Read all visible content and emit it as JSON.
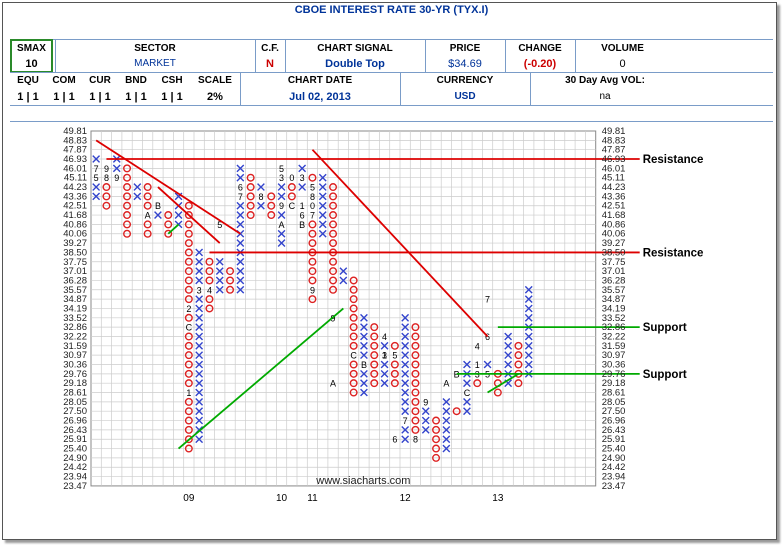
{
  "header": {
    "title": "CBOE INTEREST RATE 30-YR (TYX.I)",
    "labels": {
      "smax": "SMAX",
      "sector": "SECTOR",
      "cf": "C.F.",
      "signal": "CHART SIGNAL",
      "price": "PRICE",
      "change": "CHANGE",
      "volume": "VOLUME",
      "equ": "EQU",
      "com": "COM",
      "cur": "CUR",
      "bnd": "BND",
      "csh": "CSH",
      "scale": "SCALE",
      "date": "CHART DATE",
      "currency": "CURRENCY",
      "avgvol": "30 Day Avg VOL:"
    },
    "values": {
      "smax": "10",
      "sector": "MARKET",
      "cf": "N",
      "signal": "Double Top",
      "price": "$34.69",
      "change": "(-0.20)",
      "volume": "0",
      "equ": "1 | 1",
      "com": "1 | 1",
      "cur": "1 | 1",
      "bnd": "1 | 1",
      "csh": "1 | 1",
      "scale": "2%",
      "date": "Jul 02, 2013",
      "currency": "USD",
      "avgvol": "na"
    },
    "colors": {
      "title": "#003399",
      "change": "#cc0000",
      "smax_border": "#2a8a2a",
      "header_lines": "#7a9cc8"
    }
  },
  "chart_data": {
    "type": "point-and-figure",
    "watermark": "www.siacharts.com",
    "y_ticks": [
      49.81,
      48.83,
      47.87,
      46.93,
      46.01,
      45.11,
      44.23,
      43.36,
      42.51,
      41.68,
      40.86,
      40.06,
      39.27,
      38.5,
      37.75,
      37.01,
      36.28,
      35.57,
      34.87,
      34.19,
      33.52,
      32.86,
      32.22,
      31.59,
      30.97,
      30.36,
      29.76,
      29.18,
      28.61,
      28.05,
      27.5,
      26.96,
      26.43,
      25.91,
      25.4,
      24.9,
      24.42,
      23.94,
      23.47
    ],
    "x_labels": [
      {
        "label": "09",
        "col": 9
      },
      {
        "label": "10",
        "col": 18
      },
      {
        "label": "11",
        "col": 21
      },
      {
        "label": "12",
        "col": 30
      },
      {
        "label": "13",
        "col": 39
      }
    ],
    "columns": [
      {
        "type": "X",
        "from": 3,
        "to": 7
      },
      {
        "type": "O",
        "from": 4,
        "to": 8
      },
      {
        "type": "X",
        "from": 3,
        "to": 4
      },
      {
        "type": "O",
        "from": 4,
        "to": 11
      },
      {
        "type": "X",
        "from": 6,
        "to": 7
      },
      {
        "type": "O",
        "from": 6,
        "to": 11
      },
      {
        "type": "X",
        "from": 8,
        "to": 9
      },
      {
        "type": "O",
        "from": 9,
        "to": 11
      },
      {
        "type": "X",
        "from": 7,
        "to": 10
      },
      {
        "type": "O",
        "from": 8,
        "to": 34
      },
      {
        "type": "X",
        "from": 13,
        "to": 33
      },
      {
        "type": "O",
        "from": 14,
        "to": 19
      },
      {
        "type": "X",
        "from": 14,
        "to": 17
      },
      {
        "type": "O",
        "from": 15,
        "to": 17
      },
      {
        "type": "X",
        "from": 4,
        "to": 17
      },
      {
        "type": "O",
        "from": 5,
        "to": 9
      },
      {
        "type": "X",
        "from": 6,
        "to": 8
      },
      {
        "type": "O",
        "from": 7,
        "to": 9
      },
      {
        "type": "X",
        "from": 4,
        "to": 12
      },
      {
        "type": "O",
        "from": 5,
        "to": 7
      },
      {
        "type": "X",
        "from": 4,
        "to": 6
      },
      {
        "type": "O",
        "from": 5,
        "to": 18
      },
      {
        "type": "X",
        "from": 5,
        "to": 11
      },
      {
        "type": "O",
        "from": 6,
        "to": 17
      },
      {
        "type": "X",
        "from": 15,
        "to": 16
      },
      {
        "type": "O",
        "from": 16,
        "to": 28
      },
      {
        "type": "X",
        "from": 20,
        "to": 28
      },
      {
        "type": "O",
        "from": 21,
        "to": 27
      },
      {
        "type": "X",
        "from": 22,
        "to": 27
      },
      {
        "type": "O",
        "from": 23,
        "to": 27
      },
      {
        "type": "X",
        "from": 20,
        "to": 33
      },
      {
        "type": "O",
        "from": 21,
        "to": 33
      },
      {
        "type": "X",
        "from": 30,
        "to": 32
      },
      {
        "type": "O",
        "from": 31,
        "to": 35
      },
      {
        "type": "X",
        "from": 29,
        "to": 34
      },
      {
        "type": "O",
        "from": 30,
        "to": 30
      },
      {
        "type": "X",
        "from": 25,
        "to": 30
      },
      {
        "type": "O",
        "from": 26,
        "to": 27
      },
      {
        "type": "X",
        "from": 25,
        "to": 26
      },
      {
        "type": "O",
        "from": 26,
        "to": 28
      },
      {
        "type": "X",
        "from": 22,
        "to": 27
      },
      {
        "type": "O",
        "from": 23,
        "to": 27
      },
      {
        "type": "X",
        "from": 17,
        "to": 26
      }
    ],
    "month_markers": [
      {
        "col": 0,
        "row": 5,
        "t": "5"
      },
      {
        "col": 0,
        "row": 4,
        "t": "7"
      },
      {
        "col": 1,
        "row": 5,
        "t": "8"
      },
      {
        "col": 1,
        "row": 4,
        "t": "9"
      },
      {
        "col": 2,
        "row": 5,
        "t": "9"
      },
      {
        "col": 5,
        "row": 9,
        "t": "A"
      },
      {
        "col": 6,
        "row": 8,
        "t": "B"
      },
      {
        "col": 9,
        "row": 19,
        "t": "2"
      },
      {
        "col": 9,
        "row": 21,
        "t": "C"
      },
      {
        "col": 9,
        "row": 28,
        "t": "1"
      },
      {
        "col": 10,
        "row": 17,
        "t": "3"
      },
      {
        "col": 11,
        "row": 17,
        "t": "4"
      },
      {
        "col": 12,
        "row": 10,
        "t": "5"
      },
      {
        "col": 14,
        "row": 6,
        "t": "6"
      },
      {
        "col": 14,
        "row": 7,
        "t": "7"
      },
      {
        "col": 16,
        "row": 7,
        "t": "8"
      },
      {
        "col": 18,
        "row": 8,
        "t": "9"
      },
      {
        "col": 18,
        "row": 10,
        "t": "A"
      },
      {
        "col": 19,
        "row": 8,
        "t": "C"
      },
      {
        "col": 18,
        "row": 4,
        "t": "5"
      },
      {
        "col": 18,
        "row": 5,
        "t": "3"
      },
      {
        "col": 19,
        "row": 5,
        "t": "0"
      },
      {
        "col": 20,
        "row": 5,
        "t": "3"
      },
      {
        "col": 20,
        "row": 8,
        "t": "1"
      },
      {
        "col": 20,
        "row": 9,
        "t": "6"
      },
      {
        "col": 20,
        "row": 10,
        "t": "B"
      },
      {
        "col": 21,
        "row": 6,
        "t": "5"
      },
      {
        "col": 21,
        "row": 7,
        "t": "8"
      },
      {
        "col": 21,
        "row": 8,
        "t": "0"
      },
      {
        "col": 21,
        "row": 9,
        "t": "7"
      },
      {
        "col": 21,
        "row": 17,
        "t": "9"
      },
      {
        "col": 23,
        "row": 20,
        "t": "9"
      },
      {
        "col": 23,
        "row": 27,
        "t": "A"
      },
      {
        "col": 26,
        "row": 25,
        "t": "B"
      },
      {
        "col": 25,
        "row": 24,
        "t": "C"
      },
      {
        "col": 28,
        "row": 24,
        "t": "1"
      },
      {
        "col": 28,
        "row": 22,
        "t": "4"
      },
      {
        "col": 28,
        "row": 24,
        "t": "3"
      },
      {
        "col": 29,
        "row": 24,
        "t": "5"
      },
      {
        "col": 30,
        "row": 31,
        "t": "7"
      },
      {
        "col": 29,
        "row": 33,
        "t": "6"
      },
      {
        "col": 31,
        "row": 33,
        "t": "8"
      },
      {
        "col": 32,
        "row": 29,
        "t": "9"
      },
      {
        "col": 34,
        "row": 27,
        "t": "A"
      },
      {
        "col": 35,
        "row": 26,
        "t": "B"
      },
      {
        "col": 36,
        "row": 28,
        "t": "C"
      },
      {
        "col": 37,
        "row": 23,
        "t": "4"
      },
      {
        "col": 37,
        "row": 25,
        "t": "1"
      },
      {
        "col": 37,
        "row": 26,
        "t": "3"
      },
      {
        "col": 38,
        "row": 26,
        "t": "5"
      },
      {
        "col": 38,
        "row": 22,
        "t": "6"
      },
      {
        "col": 38,
        "row": 18,
        "t": "7"
      }
    ],
    "trendlines": [
      {
        "color": "#dd0000",
        "from": [
          0,
          1
        ],
        "to": [
          14,
          11
        ],
        "role": "resistance"
      },
      {
        "color": "#dd0000",
        "from": [
          6,
          6
        ],
        "to": [
          12,
          12
        ],
        "role": "resistance"
      },
      {
        "color": "#dd0000",
        "from": [
          21,
          2
        ],
        "to": [
          38,
          22
        ],
        "role": "resistance"
      },
      {
        "color": "#00aa00",
        "from": [
          7,
          11
        ],
        "to": [
          8,
          10
        ],
        "role": "support"
      },
      {
        "color": "#00aa00",
        "from": [
          8,
          34
        ],
        "to": [
          24,
          19
        ],
        "role": "support"
      },
      {
        "color": "#00aa00",
        "from": [
          38,
          28
        ],
        "to": [
          41,
          26
        ],
        "role": "support"
      }
    ],
    "hlines": [
      {
        "y": 46.93,
        "color": "#dd0000",
        "label": "Resistance",
        "from_col": 1,
        "to_col": 43
      },
      {
        "y": 38.5,
        "color": "#dd0000",
        "label": "Resistance",
        "from_col": 11,
        "to_col": 43
      },
      {
        "y": 32.86,
        "color": "#00aa00",
        "label": "Support",
        "from_col": 39,
        "to_col": 43
      },
      {
        "y": 29.76,
        "color": "#00aa00",
        "label": "Support",
        "from_col": 35,
        "to_col": 43
      }
    ]
  }
}
